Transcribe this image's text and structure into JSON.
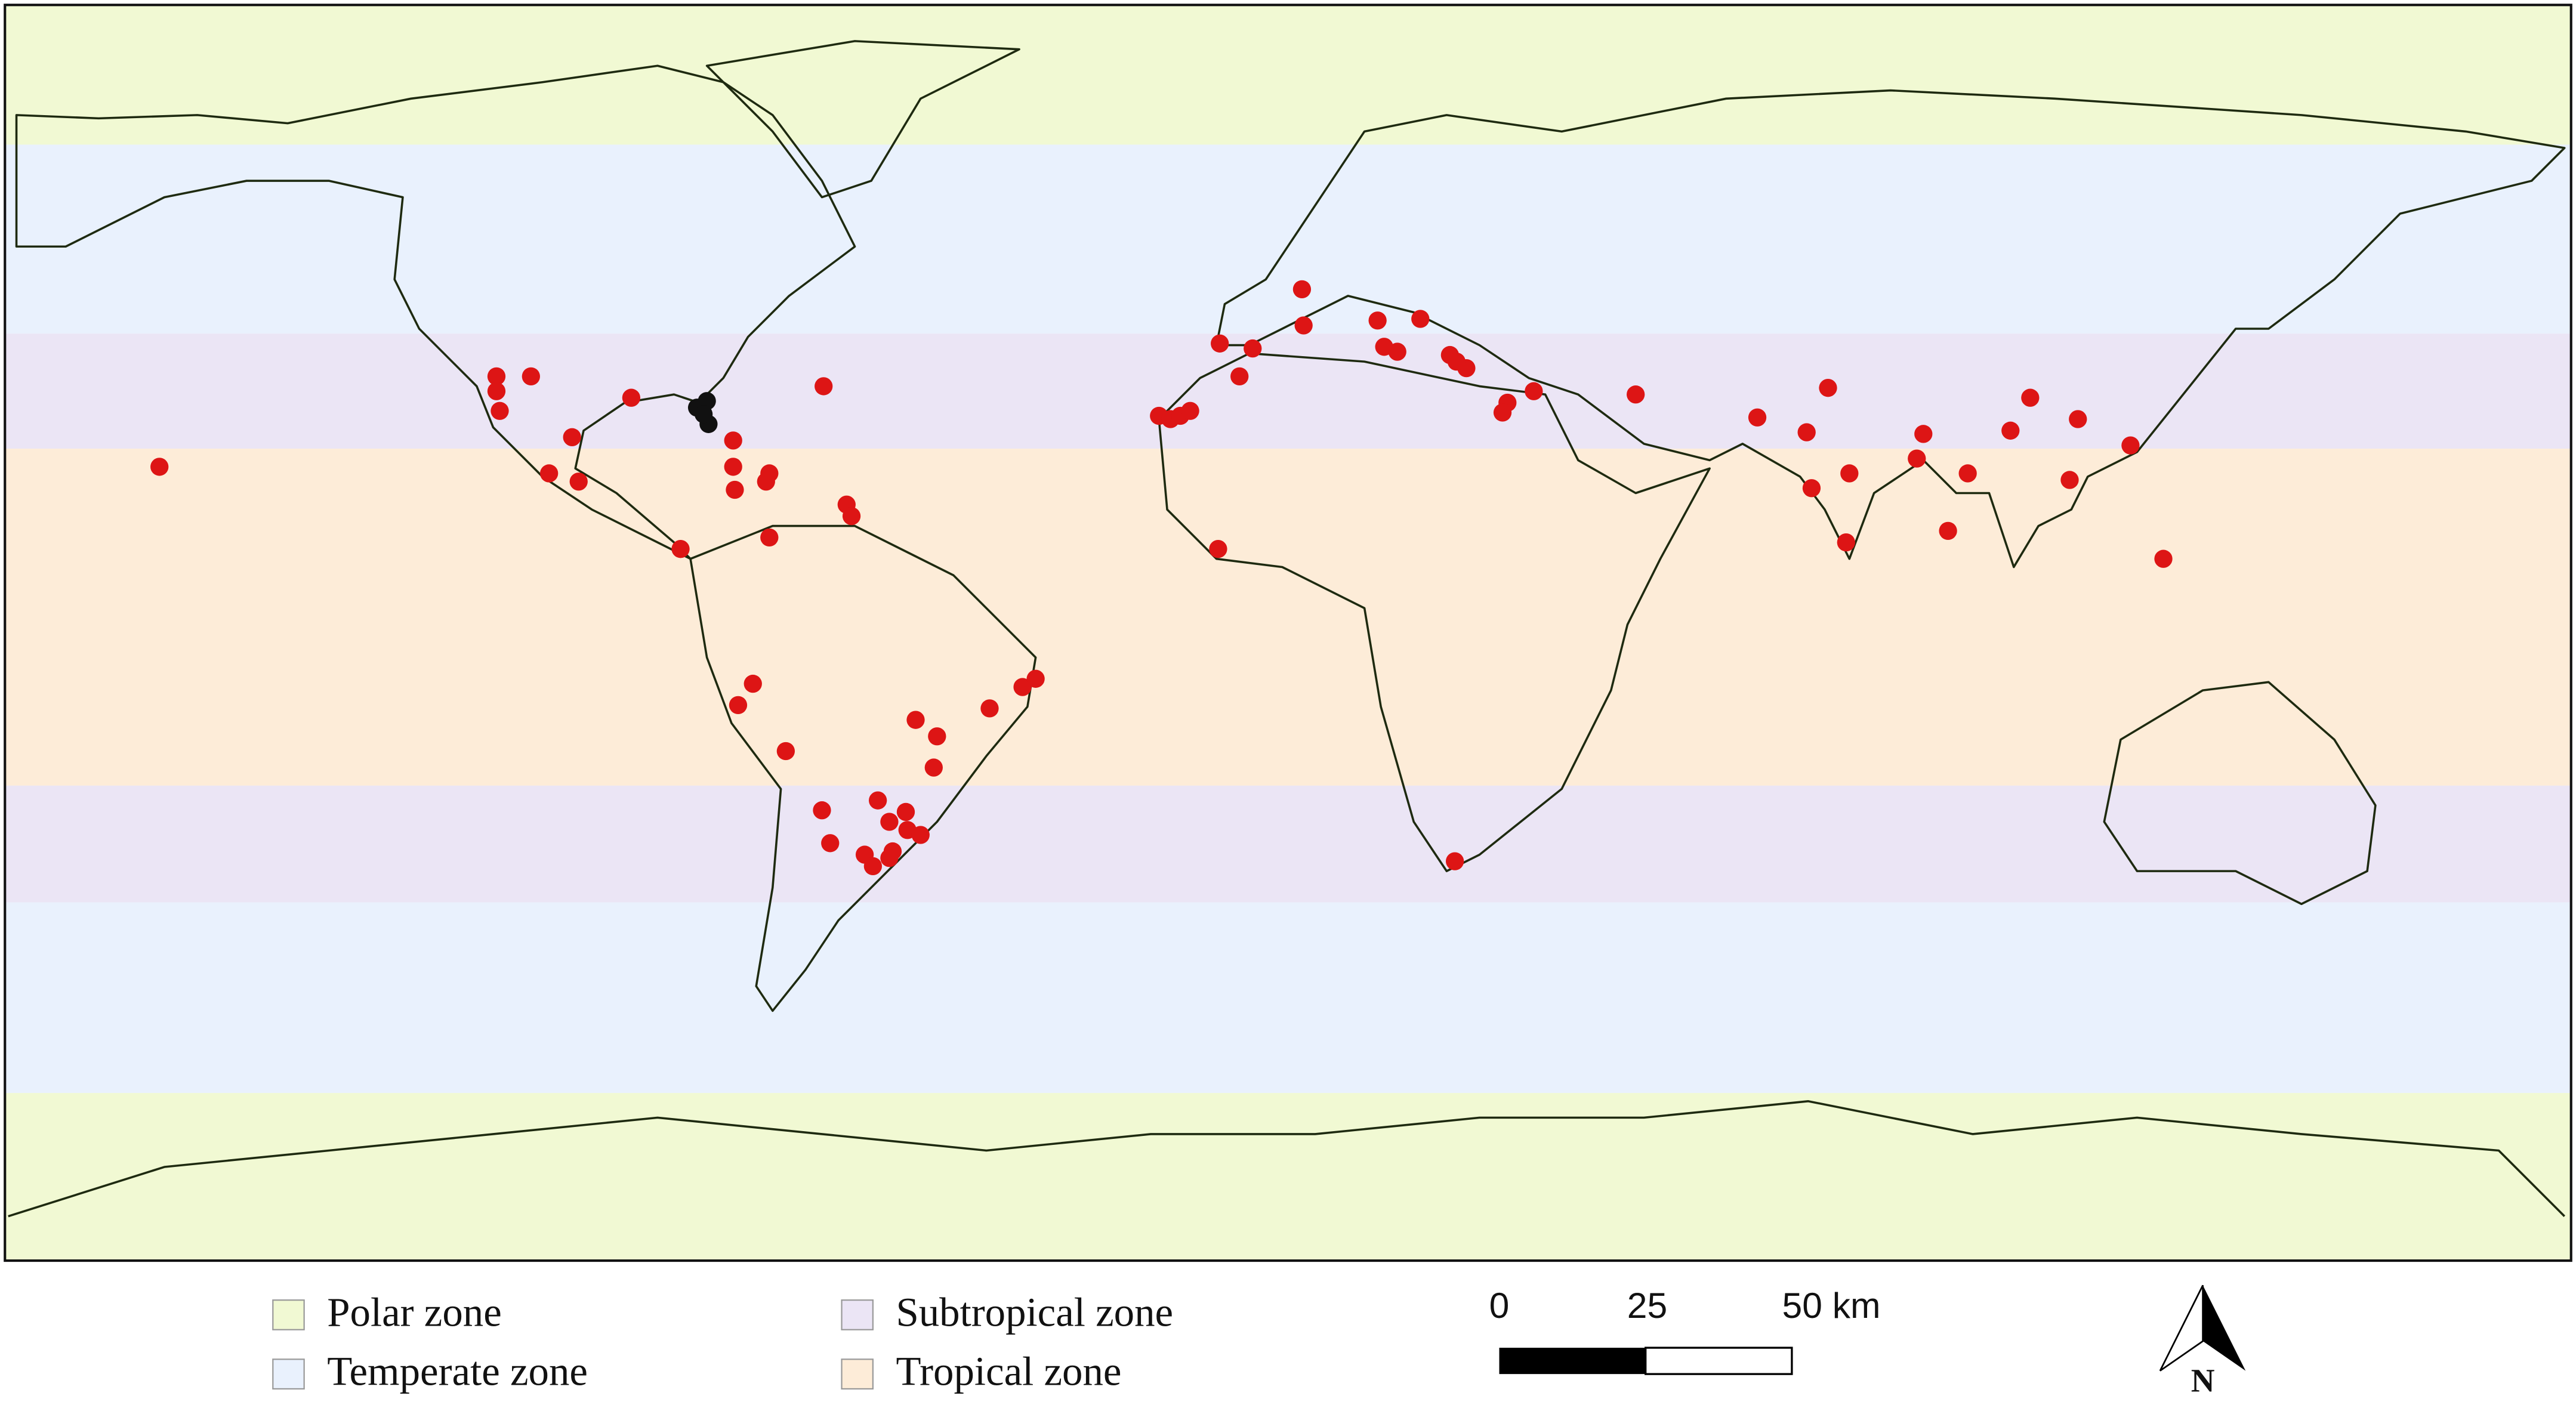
{
  "legend": {
    "items": [
      {
        "label": "Polar zone",
        "color": "#f1f9d3"
      },
      {
        "label": "Temperate zone",
        "color": "#e9f1fd"
      },
      {
        "label": "Subtropical zone",
        "color": "#ebe5f5"
      },
      {
        "label": "Tropical zone",
        "color": "#fdecd8"
      }
    ]
  },
  "scale_bar": {
    "labels": [
      "0",
      "25",
      "50 km"
    ]
  },
  "north_arrow": {
    "label": "N"
  }
}
